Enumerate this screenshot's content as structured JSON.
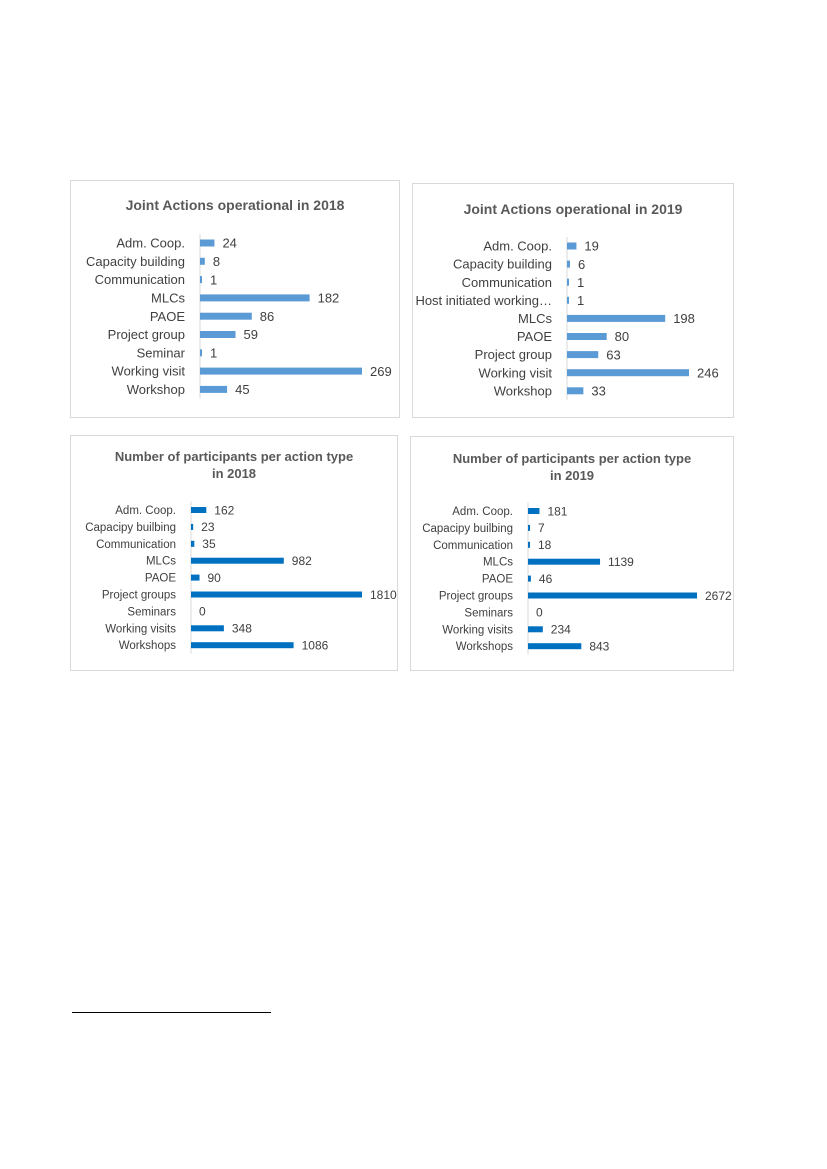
{
  "chart_data": [
    {
      "type": "bar",
      "orientation": "horizontal",
      "title": "Joint Actions operational in 2018",
      "categories": [
        "Adm. Coop.",
        "Capacity building",
        "Communication",
        "MLCs",
        "PAOE",
        "Project group",
        "Seminar",
        "Working visit",
        "Workshop"
      ],
      "values": [
        24,
        8,
        1,
        182,
        86,
        59,
        1,
        269,
        45
      ],
      "xlabel": "",
      "ylabel": "",
      "color": "#5b9bd5",
      "grid": false,
      "legend": "none"
    },
    {
      "type": "bar",
      "orientation": "horizontal",
      "title": "Joint Actions operational in 2019",
      "categories": [
        "Adm. Coop.",
        "Capacity building",
        "Communication",
        "Host initiated working…",
        "MLCs",
        "PAOE",
        "Project group",
        "Working visit",
        "Workshop"
      ],
      "values": [
        19,
        6,
        1,
        1,
        198,
        80,
        63,
        246,
        33
      ],
      "xlabel": "",
      "ylabel": "",
      "color": "#5b9bd5",
      "grid": false,
      "legend": "none"
    },
    {
      "type": "bar",
      "orientation": "horizontal",
      "title": "Number of participants per action type in 2018",
      "title_lines": [
        "Number of participants per action type",
        "in 2018"
      ],
      "categories": [
        "Adm. Coop.",
        "Capacipy builbing",
        "Communication",
        "MLCs",
        "PAOE",
        "Project groups",
        "Seminars",
        "Working visits",
        "Workshops"
      ],
      "values": [
        162,
        23,
        35,
        982,
        90,
        1810,
        0,
        348,
        1086
      ],
      "xlabel": "",
      "ylabel": "",
      "color": "#0070c0",
      "grid": false,
      "legend": "none"
    },
    {
      "type": "bar",
      "orientation": "horizontal",
      "title": "Number of participants per action type in 2019",
      "title_lines": [
        "Number of participants per action type",
        "in 2019"
      ],
      "categories": [
        "Adm. Coop.",
        "Capacipy builbing",
        "Communication",
        "MLCs",
        "PAOE",
        "Project groups",
        "Seminars",
        "Working visits",
        "Workshops"
      ],
      "values": [
        181,
        7,
        18,
        1139,
        46,
        2672,
        0,
        234,
        843
      ],
      "xlabel": "",
      "ylabel": "",
      "color": "#0070c0",
      "grid": false,
      "legend": "none"
    }
  ]
}
